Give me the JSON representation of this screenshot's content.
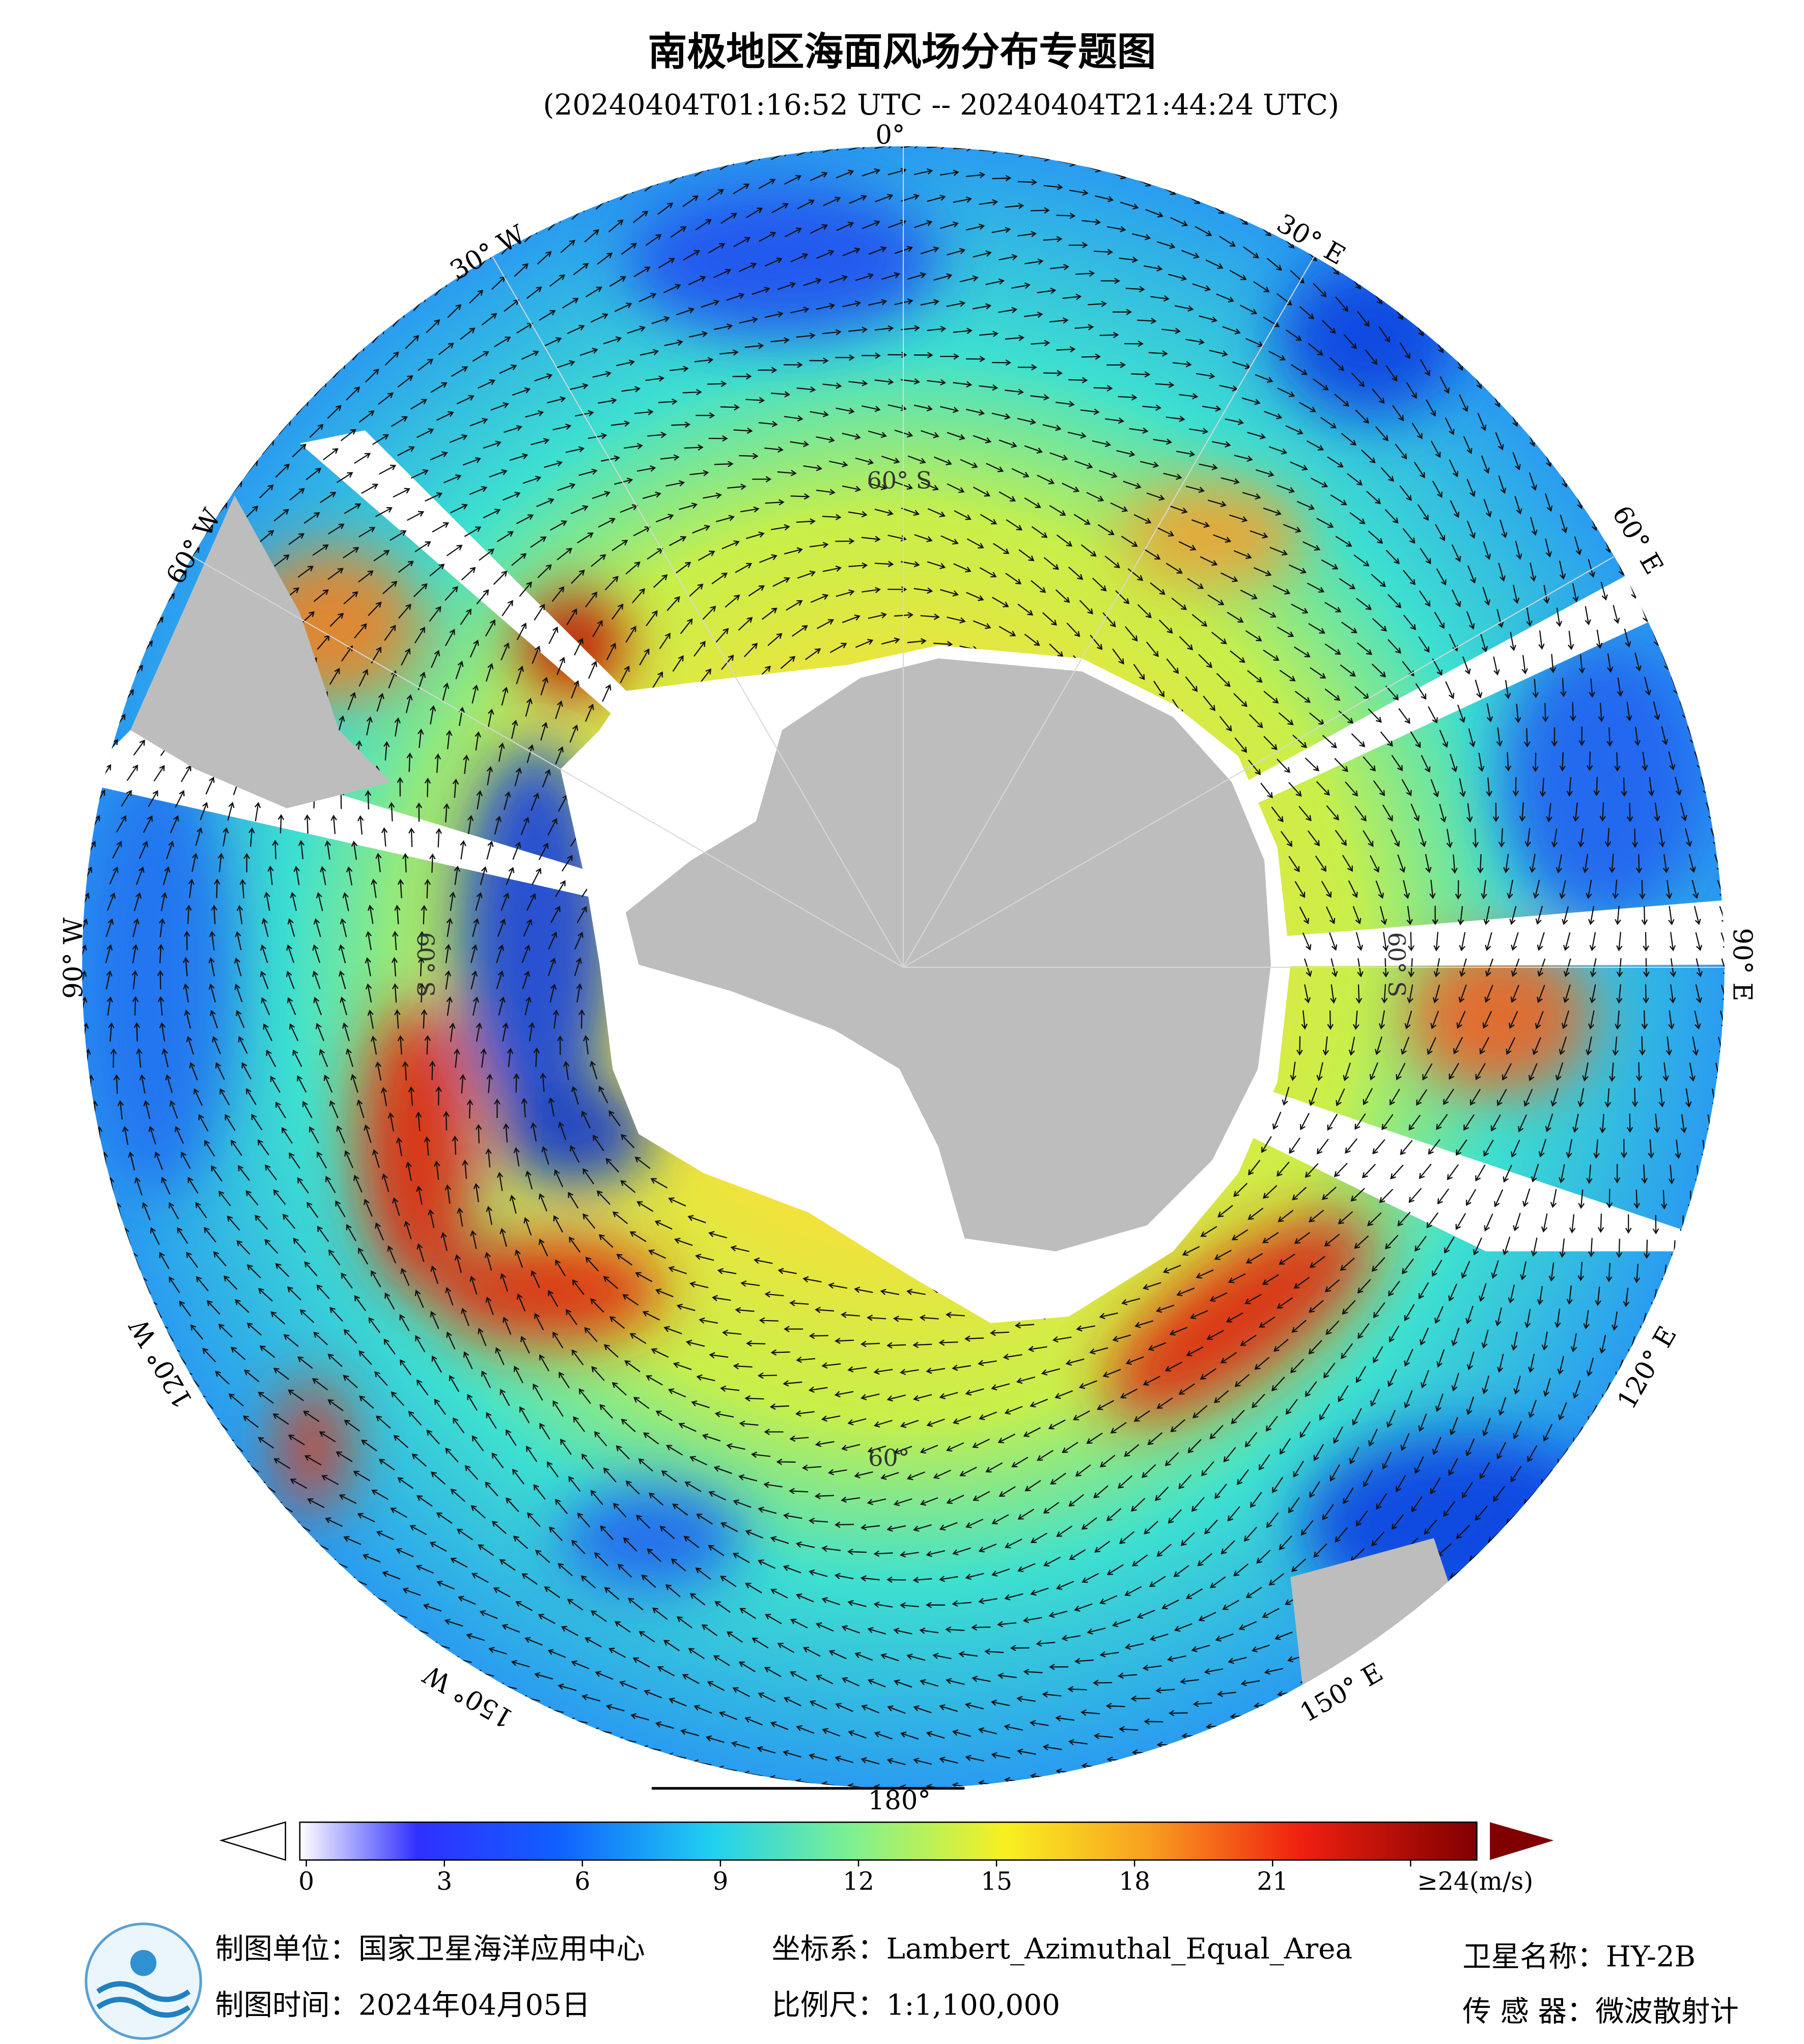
{
  "title": "南极地区海面风场分布专题图",
  "subtitle": "(20240404T01:16:52 UTC -- 20240404T21:44:24 UTC)",
  "map": {
    "longitude_labels": [
      "0°",
      "30° E",
      "60° E",
      "90° E",
      "120° E",
      "150° E",
      "180°",
      "150° W",
      "120° W",
      "90° W",
      "60° W",
      "30° W"
    ],
    "latitude_labels": [
      "60° S",
      "60° S",
      "60°",
      "60° S"
    ]
  },
  "colorbar": {
    "ticks": [
      0,
      3,
      6,
      9,
      12,
      15,
      18,
      21,
      {
        "value": 24,
        "label": "≥24(m/s)"
      }
    ]
  },
  "footer": {
    "unit": "制图单位：国家卫星海洋应用中心",
    "date": "制图时间：2024年04月05日",
    "crs": "坐标系：Lambert_Azimuthal_Equal_Area",
    "scale": "比例尺：1:1,100,000",
    "satellite": "卫星名称：HY-2B",
    "sensor": "传 感 器：微波散射计"
  }
}
